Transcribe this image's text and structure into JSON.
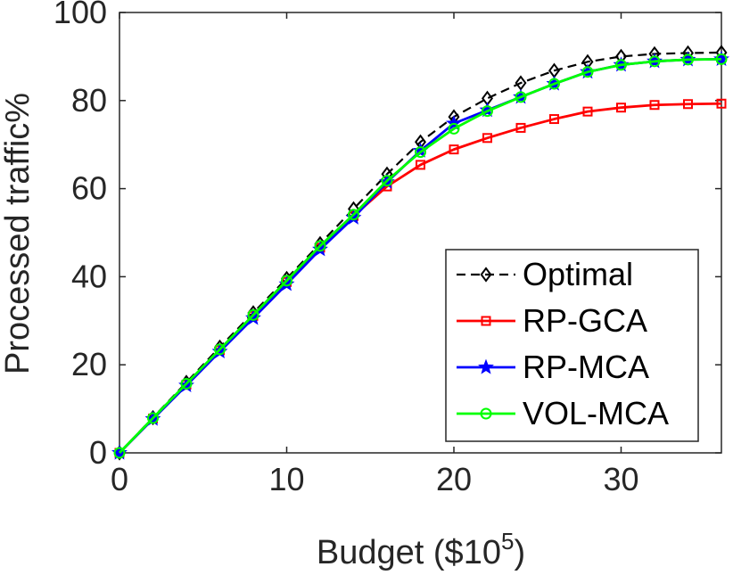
{
  "chart_data": {
    "type": "line",
    "title": "",
    "xlabel": "Budget ($10",
    "xlabel_exponent": "5",
    "xlabel_suffix": ")",
    "ylabel": "Processed traffic%",
    "xlim": [
      0,
      36
    ],
    "ylim": [
      0,
      100
    ],
    "xticks": [
      0,
      10,
      20,
      30
    ],
    "yticks": [
      0,
      20,
      40,
      60,
      80,
      100
    ],
    "grid": false,
    "legend_position": "bottom-right",
    "x": [
      0,
      2,
      4,
      6,
      8,
      10,
      12,
      14,
      16,
      18,
      20,
      22,
      24,
      26,
      28,
      30,
      32,
      34,
      36
    ],
    "series": [
      {
        "name": "Optimal",
        "color": "#000000",
        "line_style": "dashed",
        "marker": "diamond",
        "values": [
          0,
          8,
          16,
          24,
          31.8,
          39.6,
          47.5,
          55.4,
          63.3,
          70.6,
          76.3,
          80.5,
          84,
          86.8,
          88.8,
          90,
          90.6,
          90.8,
          90.9
        ]
      },
      {
        "name": "RP-GCA",
        "color": "#ff0000",
        "line_style": "solid",
        "marker": "square",
        "values": [
          0,
          7.8,
          15.5,
          23.3,
          31.1,
          38.8,
          46.6,
          53.8,
          60.5,
          65.4,
          68.9,
          71.5,
          73.8,
          75.8,
          77.5,
          78.4,
          79,
          79.2,
          79.3
        ]
      },
      {
        "name": "RP-MCA",
        "color": "#0000ff",
        "line_style": "solid",
        "marker": "star",
        "values": [
          0,
          7.7,
          15.3,
          23,
          30.6,
          38.3,
          46.2,
          53.4,
          61.5,
          68.6,
          74.8,
          77.8,
          80.8,
          83.8,
          86.5,
          88.1,
          88.9,
          89.3,
          89.4
        ]
      },
      {
        "name": "VOL-MCA",
        "color": "#00ff00",
        "line_style": "solid",
        "marker": "circle",
        "values": [
          0,
          7.9,
          15.7,
          23.5,
          31.3,
          39.1,
          47,
          54.1,
          61.8,
          68.3,
          73.6,
          77.6,
          80.8,
          83.8,
          86.5,
          88.1,
          88.9,
          89.3,
          89.4
        ]
      }
    ]
  }
}
